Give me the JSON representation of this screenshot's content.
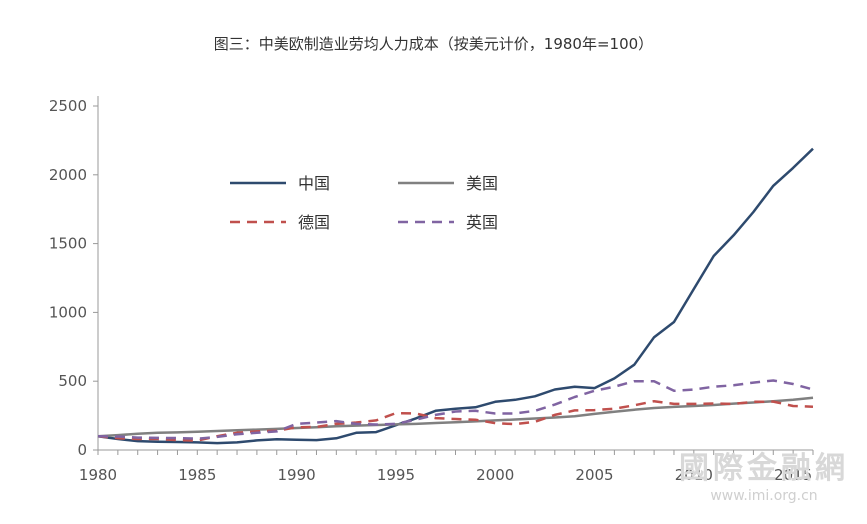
{
  "chart_data": {
    "type": "line",
    "title": "图三：中美欧制造业劳均人力成本（按美元计价，1980年=100）",
    "xlabel": "",
    "ylabel": "",
    "xlim": [
      1980,
      2016
    ],
    "ylim": [
      0,
      2500
    ],
    "x_ticks": [
      "1980",
      "1985",
      "1990",
      "1995",
      "2000",
      "2005",
      "2010",
      "2015"
    ],
    "y_ticks": [
      "0",
      "500",
      "1000",
      "1500",
      "2000",
      "2500"
    ],
    "legend_position": "upper-left inside plot, two columns",
    "x": [
      1980,
      1981,
      1982,
      1983,
      1984,
      1985,
      1986,
      1987,
      1988,
      1989,
      1990,
      1991,
      1992,
      1993,
      1994,
      1995,
      1996,
      1997,
      1998,
      1999,
      2000,
      2001,
      2002,
      2003,
      2004,
      2005,
      2006,
      2007,
      2008,
      2009,
      2010,
      2011,
      2012,
      2013,
      2014,
      2015,
      2016
    ],
    "series": [
      {
        "name": "中国",
        "color": "#2e4a6e",
        "dash": "solid",
        "values": [
          100,
          80,
          65,
          60,
          58,
          55,
          50,
          55,
          70,
          78,
          75,
          72,
          85,
          125,
          130,
          180,
          230,
          285,
          300,
          310,
          350,
          365,
          390,
          440,
          460,
          450,
          520,
          620,
          820,
          930,
          1170,
          1410,
          1560,
          1730,
          1920,
          2050,
          2190
        ]
      },
      {
        "name": "美国",
        "color": "#808080",
        "dash": "solid",
        "values": [
          100,
          108,
          118,
          125,
          128,
          133,
          138,
          143,
          148,
          153,
          160,
          166,
          172,
          177,
          182,
          186,
          190,
          196,
          202,
          208,
          215,
          222,
          229,
          236,
          246,
          262,
          278,
          293,
          305,
          313,
          320,
          327,
          337,
          345,
          355,
          365,
          380
        ]
      },
      {
        "name": "德国",
        "color": "#c0504d",
        "dash": "dashed",
        "values": [
          100,
          86,
          80,
          80,
          72,
          68,
          100,
          125,
          135,
          140,
          165,
          168,
          190,
          200,
          215,
          268,
          265,
          232,
          225,
          220,
          195,
          188,
          205,
          255,
          288,
          290,
          300,
          325,
          355,
          335,
          335,
          338,
          335,
          350,
          352,
          320,
          315
        ]
      },
      {
        "name": "英国",
        "color": "#8064a2",
        "dash": "dashed",
        "values": [
          100,
          98,
          90,
          88,
          87,
          82,
          95,
          115,
          125,
          135,
          190,
          200,
          210,
          190,
          185,
          190,
          220,
          255,
          280,
          285,
          265,
          265,
          285,
          330,
          385,
          430,
          460,
          500,
          500,
          430,
          440,
          460,
          470,
          490,
          505,
          480,
          440
        ]
      }
    ]
  },
  "watermark": {
    "logo": "國際金融網",
    "url": "www.imi.org.cn"
  }
}
